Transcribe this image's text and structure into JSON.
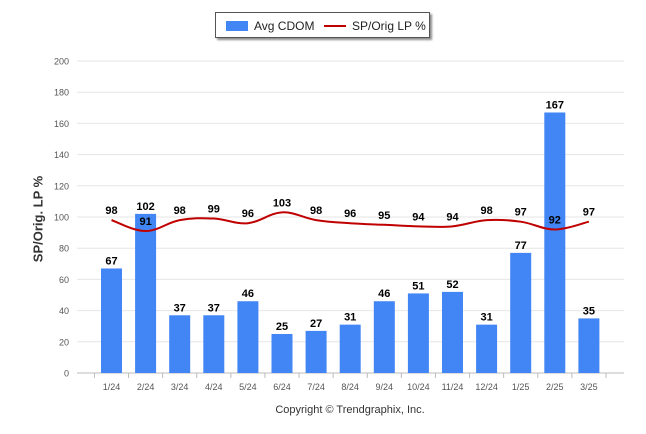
{
  "chart_data": {
    "type": "bar",
    "categories": [
      "1/24",
      "2/24",
      "3/24",
      "4/24",
      "5/24",
      "6/24",
      "7/24",
      "8/24",
      "9/24",
      "10/24",
      "11/24",
      "12/24",
      "1/25",
      "2/25",
      "3/25"
    ],
    "series": [
      {
        "name": "Avg CDOM",
        "kind": "bar",
        "color": "#4285f4",
        "values": [
          67,
          102,
          37,
          37,
          46,
          25,
          27,
          31,
          46,
          51,
          52,
          31,
          77,
          167,
          35
        ]
      },
      {
        "name": "SP/Orig LP %",
        "kind": "line",
        "color": "#c00000",
        "values": [
          98,
          91,
          98,
          99,
          96,
          103,
          98,
          96,
          95,
          94,
          94,
          98,
          97,
          92,
          97
        ]
      }
    ],
    "ylabel": "SP/Orig. LP %",
    "ylim": [
      0,
      200
    ],
    "yticks": [
      0,
      20,
      40,
      60,
      80,
      100,
      120,
      140,
      160,
      180,
      200
    ],
    "grid": true,
    "legend_position": "top-center"
  },
  "footer": {
    "copyright": "Copyright © Trendgraphix, Inc."
  }
}
